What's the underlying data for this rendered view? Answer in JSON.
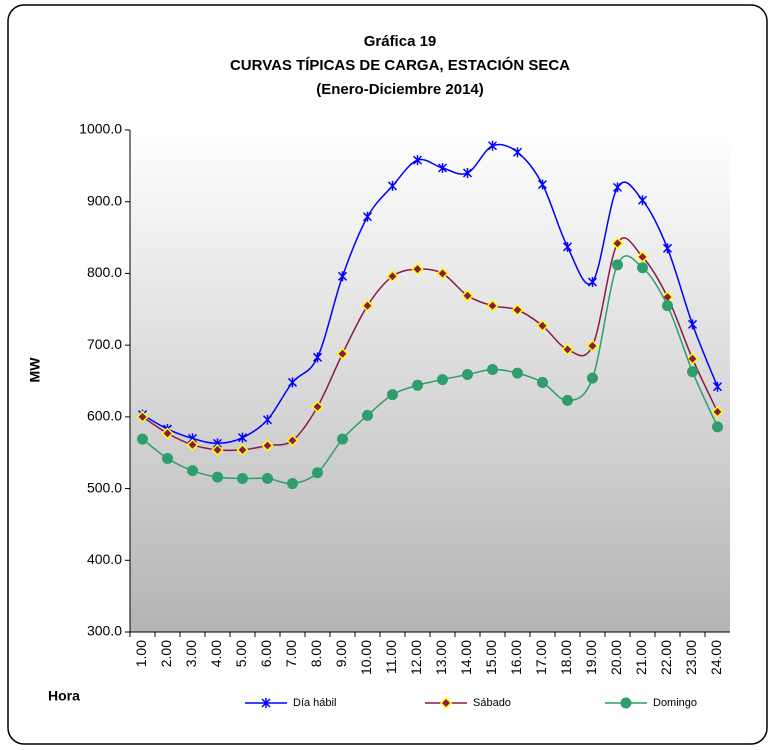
{
  "chart_data": {
    "type": "line",
    "title": "Gráfica 19",
    "subtitle": "CURVAS TÍPICAS DE CARGA, ESTACIÓN SECA",
    "subtitle2": "(Enero-Diciembre 2014)",
    "x_label": "Hora",
    "y_label": "MW",
    "categories": [
      "1.00",
      "2.00",
      "3.00",
      "4.00",
      "5.00",
      "6.00",
      "7.00",
      "8.00",
      "9.00",
      "10.00",
      "11.00",
      "12.00",
      "13.00",
      "14.00",
      "15.00",
      "16.00",
      "17.00",
      "18.00",
      "19.00",
      "20.00",
      "21.00",
      "22.00",
      "23.00",
      "24.00"
    ],
    "series": [
      {
        "name": "Día hábil",
        "color": "#0000ff",
        "values": [
          603,
          583,
          570,
          563,
          571,
          596,
          648,
          683,
          796,
          879,
          922,
          958,
          947,
          940,
          978,
          969,
          924,
          837,
          788,
          920,
          902,
          835,
          729,
          642
        ]
      },
      {
        "name": "Sábado",
        "color": "#8b1a4a",
        "values": [
          600,
          577,
          561,
          554,
          554,
          560,
          567,
          614,
          688,
          755,
          796,
          806,
          800,
          769,
          755,
          749,
          727,
          694,
          699,
          842,
          823,
          767,
          681,
          607
        ]
      },
      {
        "name": "Domingo",
        "color": "#2e9e6b",
        "values": [
          569,
          542,
          525,
          516,
          514,
          514,
          507,
          522,
          569,
          602,
          631,
          644,
          652,
          659,
          666,
          661,
          648,
          623,
          654,
          812,
          808,
          755,
          663,
          586
        ]
      }
    ],
    "ylim": [
      300,
      1000
    ],
    "yticks": [
      {
        "value": 300,
        "label": "300.0"
      },
      {
        "value": 400,
        "label": "400.0"
      },
      {
        "value": 500,
        "label": "500.0"
      },
      {
        "value": 600,
        "label": "600.0"
      },
      {
        "value": 700,
        "label": "700.0"
      },
      {
        "value": 800,
        "label": "800.0"
      },
      {
        "value": 900,
        "label": "900.0"
      },
      {
        "value": 1000,
        "label": "1000.0"
      }
    ],
    "legend": "bottom"
  }
}
